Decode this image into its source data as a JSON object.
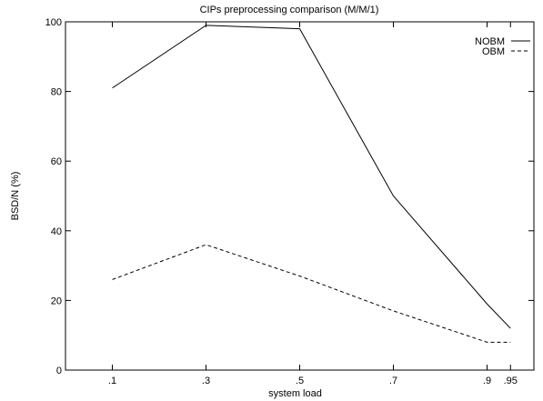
{
  "chart_data": {
    "type": "line",
    "title": "CIPs preprocessing comparison  (M/M/1)",
    "xlabel": "system load",
    "ylabel": "BSD/N (%)",
    "x": [
      0.1,
      0.3,
      0.5,
      0.7,
      0.9,
      0.95
    ],
    "x_tick_values": [
      0.1,
      0.3,
      0.5,
      0.7,
      0.9,
      0.95
    ],
    "x_tick_labels": [
      ".1",
      ".3",
      ".5",
      ".7",
      ".9",
      ".95"
    ],
    "xlim": [
      0.0,
      1.0
    ],
    "y_ticks": [
      0,
      20,
      40,
      60,
      80,
      100
    ],
    "ylim": [
      0,
      100
    ],
    "grid": false,
    "legend_position": "top-right",
    "series": [
      {
        "name": "NOBM",
        "values": [
          81,
          99,
          98,
          50,
          19,
          12
        ],
        "line_style": "solid",
        "color": "#000000"
      },
      {
        "name": "OBM",
        "values": [
          26,
          36,
          27,
          17,
          8,
          8
        ],
        "line_style": "dashed",
        "color": "#000000"
      }
    ]
  }
}
